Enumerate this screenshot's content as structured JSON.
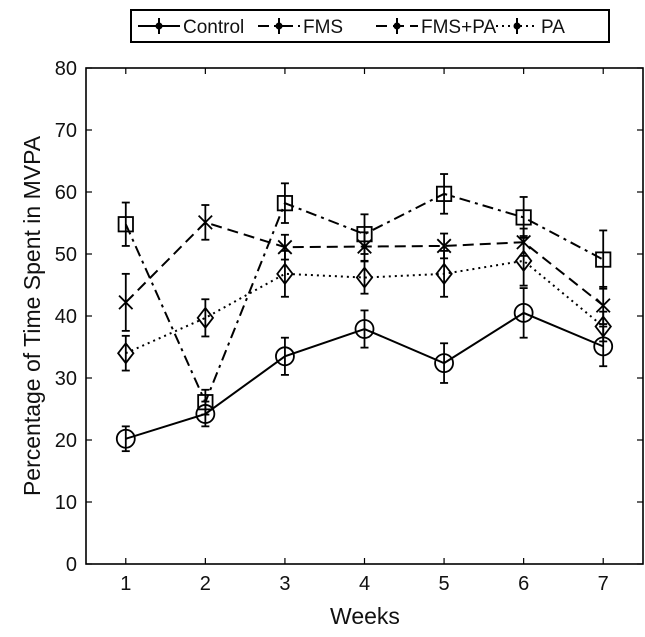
{
  "chart_data": {
    "type": "line",
    "title": "",
    "xlabel": "Weeks",
    "ylabel": "Percentage of Time Spent in MVPA",
    "x": [
      1,
      2,
      3,
      4,
      5,
      6,
      7
    ],
    "xlim": [
      0.5,
      7.5
    ],
    "ylim": [
      0,
      80
    ],
    "x_ticks": [
      1,
      2,
      3,
      4,
      5,
      6,
      7
    ],
    "y_ticks": [
      0,
      10,
      20,
      30,
      40,
      50,
      60,
      70,
      80
    ],
    "grid": false,
    "legend_position": "top-center",
    "series": [
      {
        "name": "Control",
        "line_style": "solid",
        "marker": "circle",
        "color": "#000000",
        "values": [
          20.2,
          24.2,
          33.5,
          37.9,
          32.4,
          40.5,
          35.1
        ],
        "errors": [
          2.0,
          2.0,
          3.0,
          3.0,
          3.2,
          4.0,
          3.2
        ]
      },
      {
        "name": "FMS",
        "line_style": "dash-dot",
        "marker": "square",
        "color": "#000000",
        "values": [
          54.8,
          26.1,
          58.2,
          53.2,
          59.7,
          55.9,
          49.1
        ],
        "errors": [
          3.5,
          2.0,
          3.2,
          3.2,
          3.2,
          3.3,
          4.7
        ]
      },
      {
        "name": "FMS+PA",
        "line_style": "dashed",
        "marker": "x",
        "color": "#000000",
        "values": [
          42.2,
          55.1,
          51.1,
          51.2,
          51.3,
          51.9,
          41.7
        ],
        "errors": [
          4.6,
          2.8,
          2.0,
          2.3,
          2.0,
          2.2,
          3.0
        ]
      },
      {
        "name": "PA",
        "line_style": "dotted",
        "marker": "diamond",
        "color": "#000000",
        "values": [
          34.0,
          39.7,
          46.8,
          46.2,
          46.8,
          48.9,
          38.3
        ],
        "errors": [
          2.8,
          3.0,
          3.7,
          2.6,
          3.7,
          4.0,
          2.4
        ]
      }
    ]
  }
}
